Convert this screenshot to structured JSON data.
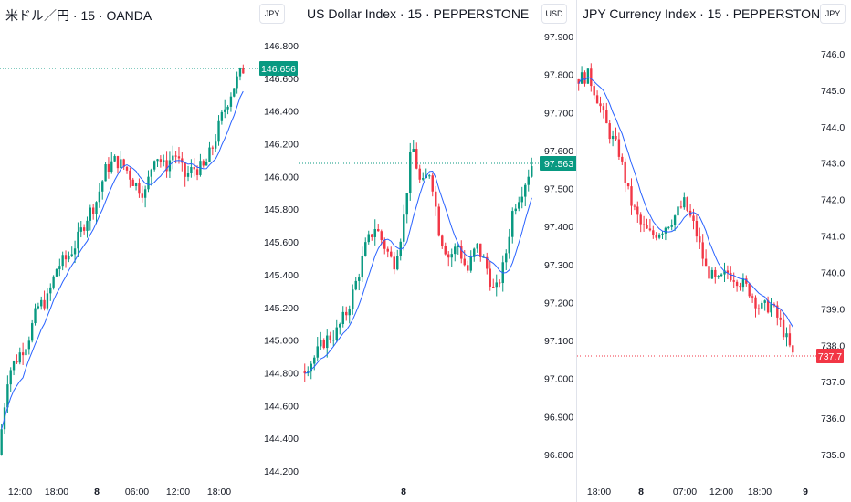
{
  "chart_data": [
    {
      "type": "candlestick",
      "title": "米ドル／円 · 15 · OANDA",
      "currency": "JPY",
      "y_ticks": [
        "146.800",
        "146.600",
        "146.400",
        "146.200",
        "146.000",
        "145.800",
        "145.600",
        "145.400",
        "145.200",
        "145.000",
        "144.800",
        "144.600",
        "144.400",
        "144.200"
      ],
      "x_ticks": [
        "12:00",
        "18:00",
        "8",
        "06:00",
        "12:00",
        "18:00"
      ],
      "last_price": "146.656",
      "ylim": [
        144.2,
        146.8
      ],
      "close_path": [
        [
          0,
          144.3
        ],
        [
          0.04,
          144.8
        ],
        [
          0.08,
          144.9
        ],
        [
          0.12,
          145.0
        ],
        [
          0.16,
          145.2
        ],
        [
          0.2,
          145.25
        ],
        [
          0.24,
          145.45
        ],
        [
          0.28,
          145.5
        ],
        [
          0.32,
          145.6
        ],
        [
          0.36,
          145.75
        ],
        [
          0.4,
          145.85
        ],
        [
          0.44,
          146.05
        ],
        [
          0.48,
          146.1
        ],
        [
          0.52,
          146.05
        ],
        [
          0.56,
          145.95
        ],
        [
          0.6,
          145.9
        ],
        [
          0.64,
          146.15
        ],
        [
          0.68,
          146.05
        ],
        [
          0.72,
          146.15
        ],
        [
          0.76,
          146.0
        ],
        [
          0.8,
          146.05
        ],
        [
          0.84,
          146.05
        ],
        [
          0.88,
          146.2
        ],
        [
          0.92,
          146.4
        ],
        [
          0.96,
          146.55
        ],
        [
          1,
          146.656
        ]
      ]
    },
    {
      "type": "candlestick",
      "title": "US Dollar Index · 15 · PEPPERSTONE",
      "currency": "USD",
      "y_ticks": [
        "97.900",
        "97.800",
        "97.700",
        "97.600",
        "97.500",
        "97.400",
        "97.300",
        "97.200",
        "97.100",
        "97.000",
        "96.900",
        "96.800"
      ],
      "x_ticks": [
        "8"
      ],
      "last_price": "97.563",
      "ylim": [
        96.75,
        97.95
      ],
      "close_path": [
        [
          0,
          97.02
        ],
        [
          0.05,
          97.05
        ],
        [
          0.1,
          97.1
        ],
        [
          0.15,
          97.12
        ],
        [
          0.2,
          97.18
        ],
        [
          0.25,
          97.28
        ],
        [
          0.28,
          97.35
        ],
        [
          0.32,
          97.4
        ],
        [
          0.36,
          97.35
        ],
        [
          0.4,
          97.3
        ],
        [
          0.44,
          97.4
        ],
        [
          0.48,
          97.62
        ],
        [
          0.52,
          97.5
        ],
        [
          0.56,
          97.55
        ],
        [
          0.6,
          97.38
        ],
        [
          0.64,
          97.32
        ],
        [
          0.68,
          97.35
        ],
        [
          0.72,
          97.28
        ],
        [
          0.76,
          97.35
        ],
        [
          0.8,
          97.3
        ],
        [
          0.84,
          97.22
        ],
        [
          0.88,
          97.3
        ],
        [
          0.92,
          97.45
        ],
        [
          0.96,
          97.5
        ],
        [
          1,
          97.563
        ]
      ]
    },
    {
      "type": "candlestick",
      "title": "JPY Currency Index · 15 · PEPPERSTONE",
      "currency": "JPY",
      "y_ticks": [
        "746.0",
        "745.0",
        "744.0",
        "743.0",
        "742.0",
        "741.0",
        "740.0",
        "739.0",
        "738.0",
        "737.0",
        "736.0",
        "735.0"
      ],
      "x_ticks": [
        "18:00",
        "8",
        "07:00",
        "12:00",
        "18:00",
        "9"
      ],
      "last_price": "737.7",
      "ylim": [
        734.7,
        746.3
      ],
      "close_path": [
        [
          0,
          745.3
        ],
        [
          0.06,
          745.4
        ],
        [
          0.1,
          744.8
        ],
        [
          0.15,
          743.9
        ],
        [
          0.2,
          743.3
        ],
        [
          0.25,
          742.0
        ],
        [
          0.3,
          741.3
        ],
        [
          0.35,
          741.0
        ],
        [
          0.4,
          741.2
        ],
        [
          0.45,
          741.5
        ],
        [
          0.5,
          741.9
        ],
        [
          0.55,
          741.2
        ],
        [
          0.6,
          740.1
        ],
        [
          0.65,
          739.7
        ],
        [
          0.7,
          740.0
        ],
        [
          0.75,
          739.8
        ],
        [
          0.8,
          739.5
        ],
        [
          0.85,
          739.0
        ],
        [
          0.9,
          739.1
        ],
        [
          0.95,
          738.5
        ],
        [
          1,
          737.7
        ]
      ]
    }
  ],
  "colors": {
    "up": "#089981",
    "down": "#f23645",
    "ma": "#2962ff",
    "text": "#131722",
    "grid": "#e0e3eb"
  }
}
